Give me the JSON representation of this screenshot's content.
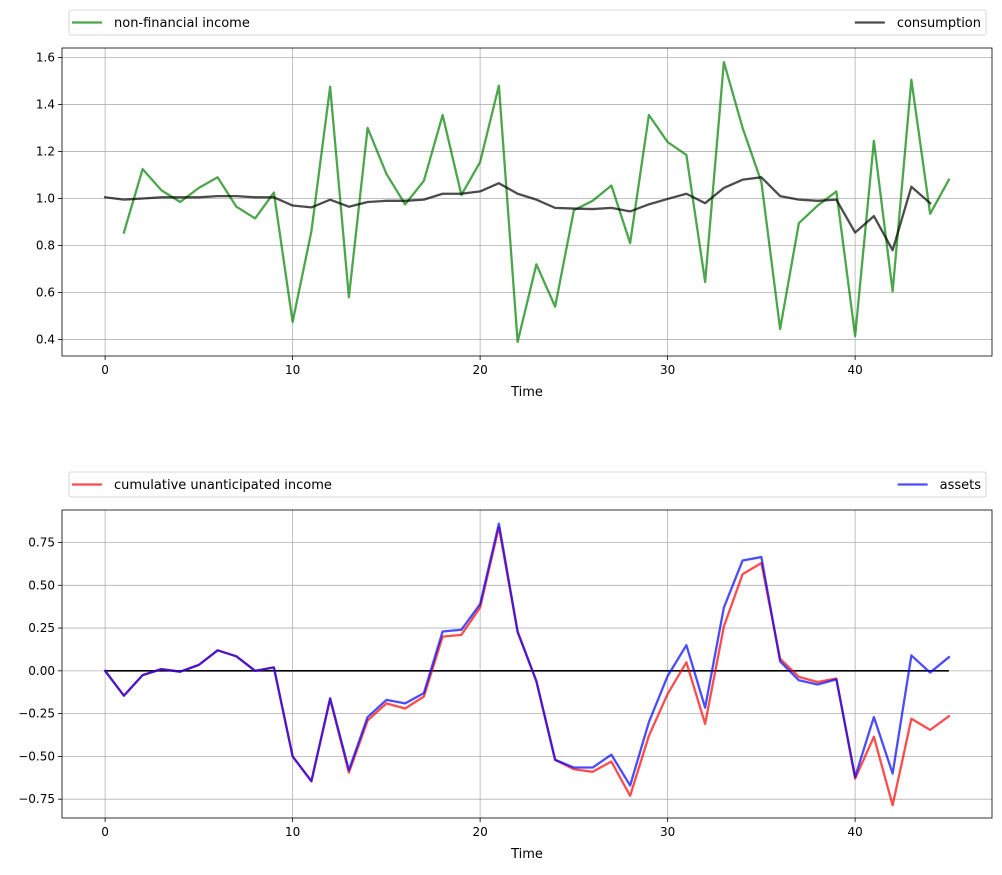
{
  "chart_data": [
    {
      "type": "line",
      "xlabel": "Time",
      "ylabel": "",
      "xlim": [
        -2.3,
        47.3
      ],
      "ylim": [
        0.33,
        1.64
      ],
      "xticks": [
        0,
        10,
        20,
        30,
        40
      ],
      "yticks": [
        0.4,
        0.6,
        0.8,
        1.0,
        1.2,
        1.4,
        1.6
      ],
      "ytick_decimals": 1,
      "grid": true,
      "legend": "above-plot",
      "series": [
        {
          "name": "non-financial income",
          "color": "#008000",
          "x": [
            1,
            2,
            3,
            4,
            5,
            6,
            7,
            8,
            9,
            10,
            11,
            12,
            13,
            14,
            15,
            16,
            17,
            18,
            19,
            20,
            21,
            22,
            23,
            24,
            25,
            26,
            27,
            28,
            29,
            30,
            31,
            32,
            33,
            34,
            35,
            36,
            37,
            38,
            39,
            40,
            41,
            42,
            43,
            44,
            45
          ],
          "values": [
            0.855,
            1.125,
            1.035,
            0.985,
            1.045,
            1.09,
            0.965,
            0.915,
            1.025,
            0.475,
            0.86,
            1.475,
            0.58,
            1.3,
            1.105,
            0.975,
            1.075,
            1.355,
            1.015,
            1.155,
            1.48,
            0.39,
            0.72,
            0.54,
            0.95,
            0.99,
            1.055,
            0.81,
            1.355,
            1.24,
            1.185,
            0.645,
            1.58,
            1.3,
            1.07,
            0.445,
            0.895,
            0.97,
            1.03,
            0.415,
            1.245,
            0.605,
            1.505,
            0.935,
            1.08
          ]
        },
        {
          "name": "consumption",
          "color": "#000000",
          "x": [
            0,
            1,
            2,
            3,
            4,
            5,
            6,
            7,
            8,
            9,
            10,
            11,
            12,
            13,
            14,
            15,
            16,
            17,
            18,
            19,
            20,
            21,
            22,
            23,
            24,
            25,
            26,
            27,
            28,
            29,
            30,
            31,
            32,
            33,
            34,
            35,
            36,
            37,
            38,
            39,
            40,
            41,
            42,
            43,
            44
          ],
          "values": [
            1.005,
            0.995,
            1.0,
            1.005,
            1.005,
            1.005,
            1.01,
            1.01,
            1.005,
            1.005,
            0.97,
            0.962,
            0.995,
            0.965,
            0.985,
            0.99,
            0.99,
            0.995,
            1.02,
            1.02,
            1.03,
            1.065,
            1.02,
            0.995,
            0.96,
            0.957,
            0.955,
            0.96,
            0.945,
            0.975,
            0.998,
            1.02,
            0.98,
            1.045,
            1.08,
            1.09,
            1.01,
            0.995,
            0.99,
            0.995,
            0.855,
            0.925,
            0.78,
            1.05,
            0.98
          ]
        }
      ]
    },
    {
      "type": "line",
      "xlabel": "Time",
      "ylabel": "",
      "xlim": [
        -2.3,
        47.3
      ],
      "ylim": [
        -0.86,
        0.94
      ],
      "xticks": [
        0,
        10,
        20,
        30,
        40
      ],
      "yticks": [
        -0.75,
        -0.5,
        -0.25,
        0.0,
        0.25,
        0.5,
        0.75
      ],
      "ytick_decimals": 2,
      "grid": true,
      "legend": "above-plot",
      "hline": {
        "y": 0,
        "x0": 0,
        "x1": 45,
        "color": "#000000"
      },
      "series": [
        {
          "name": "cumulative unanticipated income",
          "color": "#ff0000",
          "x": [
            0,
            1,
            2,
            3,
            4,
            5,
            6,
            7,
            8,
            9,
            10,
            11,
            12,
            13,
            14,
            15,
            16,
            17,
            18,
            19,
            20,
            21,
            22,
            23,
            24,
            25,
            26,
            27,
            28,
            29,
            30,
            31,
            32,
            33,
            34,
            35,
            36,
            37,
            38,
            39,
            40,
            41,
            42,
            43,
            44,
            45
          ],
          "values": [
            0.0,
            -0.145,
            -0.025,
            0.01,
            -0.005,
            0.035,
            0.12,
            0.085,
            0.0,
            0.02,
            -0.5,
            -0.645,
            -0.165,
            -0.595,
            -0.29,
            -0.19,
            -0.22,
            -0.15,
            0.2,
            0.21,
            0.37,
            0.84,
            0.225,
            -0.06,
            -0.52,
            -0.575,
            -0.59,
            -0.53,
            -0.73,
            -0.38,
            -0.135,
            0.05,
            -0.31,
            0.26,
            0.565,
            0.63,
            0.07,
            -0.035,
            -0.065,
            -0.045,
            -0.63,
            -0.385,
            -0.785,
            -0.28,
            -0.345,
            -0.265
          ]
        },
        {
          "name": "assets",
          "color": "#0000ff",
          "x": [
            0,
            1,
            2,
            3,
            4,
            5,
            6,
            7,
            8,
            9,
            10,
            11,
            12,
            13,
            14,
            15,
            16,
            17,
            18,
            19,
            20,
            21,
            22,
            23,
            24,
            25,
            26,
            27,
            28,
            29,
            30,
            31,
            32,
            33,
            34,
            35,
            36,
            37,
            38,
            39,
            40,
            41,
            42,
            43,
            44,
            45
          ],
          "values": [
            0.0,
            -0.145,
            -0.025,
            0.01,
            -0.005,
            0.035,
            0.12,
            0.085,
            0.0,
            0.02,
            -0.5,
            -0.645,
            -0.16,
            -0.58,
            -0.27,
            -0.17,
            -0.19,
            -0.13,
            0.23,
            0.24,
            0.39,
            0.86,
            0.23,
            -0.06,
            -0.52,
            -0.565,
            -0.565,
            -0.49,
            -0.67,
            -0.3,
            -0.03,
            0.15,
            -0.215,
            0.37,
            0.645,
            0.665,
            0.055,
            -0.055,
            -0.08,
            -0.05,
            -0.62,
            -0.27,
            -0.6,
            0.09,
            -0.01,
            0.08
          ]
        }
      ]
    }
  ]
}
